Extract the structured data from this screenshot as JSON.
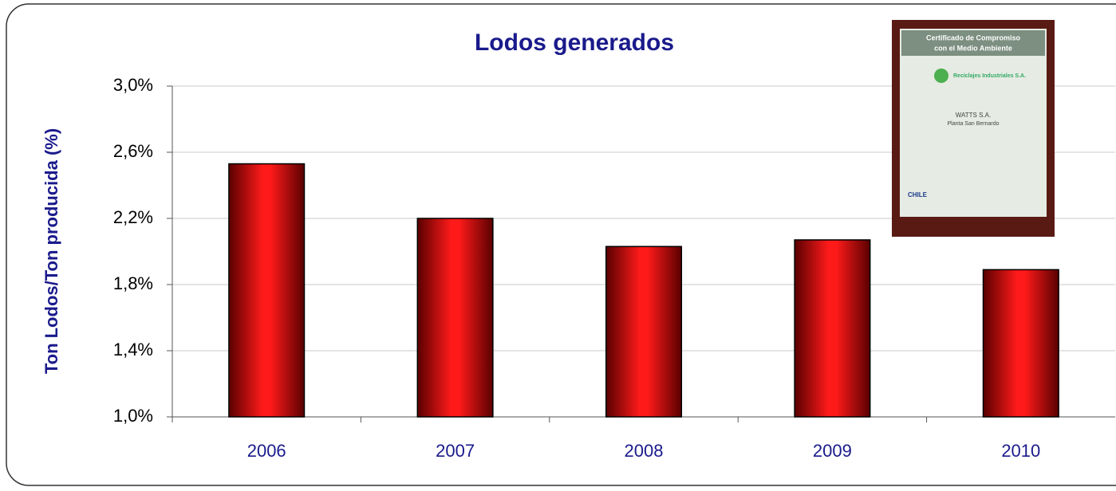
{
  "chart_data": {
    "type": "bar",
    "title": "Lodos generados",
    "y_label": "Ton Lodos/Ton producida (%)",
    "categories": [
      "2006",
      "2007",
      "2008",
      "2009",
      "2010"
    ],
    "values": [
      2.53,
      2.2,
      2.03,
      2.07,
      1.89
    ],
    "color": "#e00000",
    "ylim": [
      1.0,
      3.0
    ],
    "yticks": [
      {
        "value": 1.0,
        "label": "1,0%"
      },
      {
        "value": 1.4,
        "label": "1,4%"
      },
      {
        "value": 1.8,
        "label": "1,8%"
      },
      {
        "value": 2.2,
        "label": "2,2%"
      },
      {
        "value": 2.6,
        "label": "2,6%"
      },
      {
        "value": 3.0,
        "label": "3,0%"
      }
    ],
    "grid": true
  },
  "certificate": {
    "title": "Certificado de Compromiso",
    "subtitle": "con el Medio Ambiente",
    "issuer": "Reciclajes Industriales S.A.",
    "company": "WATTS S.A.",
    "plant": "Planta San Bernardo",
    "country": "CHILE"
  }
}
